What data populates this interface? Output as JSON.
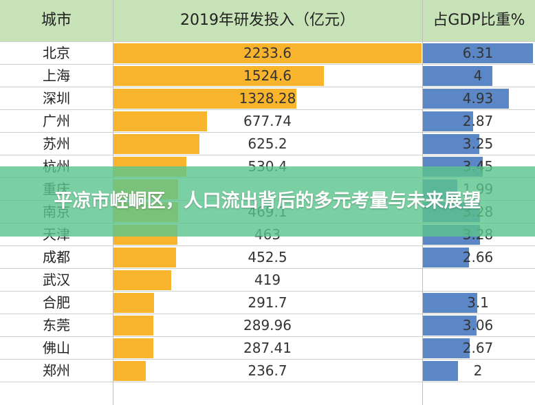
{
  "colors": {
    "header_bg": "#c7e2b6",
    "rd_bar": "#f9b42d",
    "gdp_bar": "#5b87c7",
    "banner": "#5ac48c"
  },
  "banner": {
    "title": "平凉市崆峒区，人口流出背后的多元考量与未来展望"
  },
  "chart_data": {
    "type": "table",
    "columns": [
      "城市",
      "2019年研发投入（亿元）",
      "占GDP比重%"
    ],
    "rows": [
      {
        "city": "北京",
        "rd": 2233.6,
        "rd_label": "2233.6",
        "gdp": 6.31,
        "gdp_label": "6.31"
      },
      {
        "city": "上海",
        "rd": 1524.6,
        "rd_label": "1524.6",
        "gdp": 4,
        "gdp_label": "4"
      },
      {
        "city": "深圳",
        "rd": 1328.28,
        "rd_label": "1328.28",
        "gdp": 4.93,
        "gdp_label": "4.93"
      },
      {
        "city": "广州",
        "rd": 677.74,
        "rd_label": "677.74",
        "gdp": 2.87,
        "gdp_label": "2.87"
      },
      {
        "city": "苏州",
        "rd": 625.2,
        "rd_label": "625.2",
        "gdp": 3.25,
        "gdp_label": "3.25"
      },
      {
        "city": "杭州",
        "rd": 530.4,
        "rd_label": "530.4",
        "gdp": 3.45,
        "gdp_label": "3.45"
      },
      {
        "city": "重庆",
        "rd": 469.6,
        "rd_label": "",
        "gdp": 1.99,
        "gdp_label": "1.99"
      },
      {
        "city": "南京",
        "rd": 469.1,
        "rd_label": "469.1",
        "gdp": 3.28,
        "gdp_label": "3.28"
      },
      {
        "city": "天津",
        "rd": 463,
        "rd_label": "463",
        "gdp": 3.28,
        "gdp_label": "3.28"
      },
      {
        "city": "成都",
        "rd": 452.5,
        "rd_label": "452.5",
        "gdp": 2.66,
        "gdp_label": "2.66"
      },
      {
        "city": "武汉",
        "rd": 419,
        "rd_label": "419",
        "gdp": null,
        "gdp_label": ""
      },
      {
        "city": "合肥",
        "rd": 291.7,
        "rd_label": "291.7",
        "gdp": 3.1,
        "gdp_label": "3.1"
      },
      {
        "city": "东莞",
        "rd": 289.96,
        "rd_label": "289.96",
        "gdp": 3.06,
        "gdp_label": "3.06"
      },
      {
        "city": "佛山",
        "rd": 287.41,
        "rd_label": "287.41",
        "gdp": 2.67,
        "gdp_label": "2.67"
      },
      {
        "city": "郑州",
        "rd": 236.7,
        "rd_label": "236.7",
        "gdp": 2,
        "gdp_label": "2"
      }
    ],
    "rd_max": 2233.6,
    "gdp_max": 6.31
  }
}
